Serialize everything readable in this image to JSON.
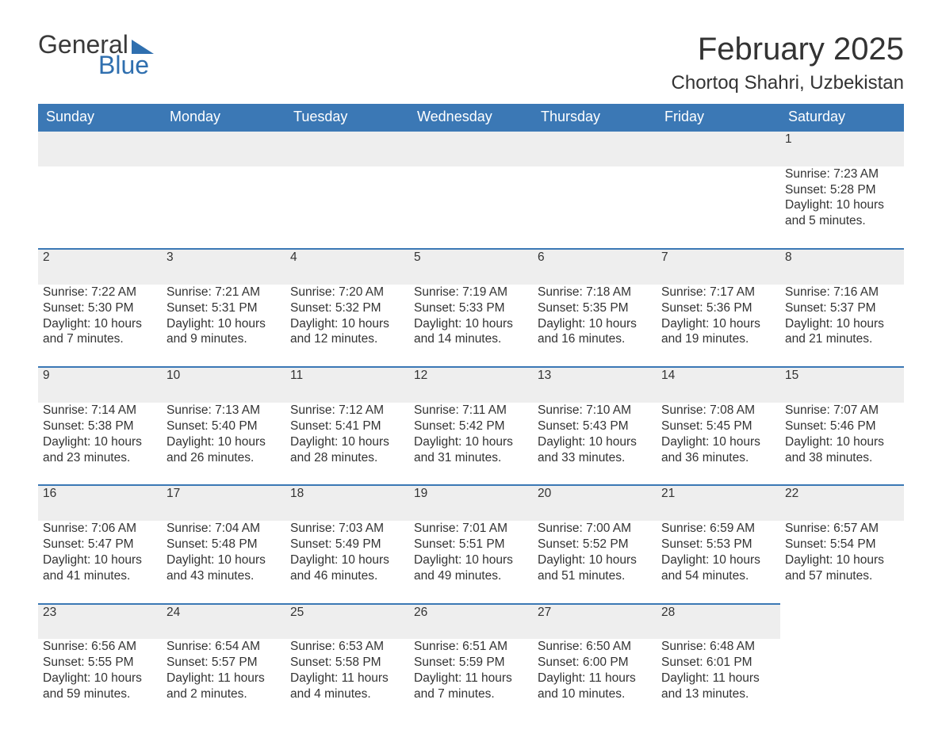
{
  "logo": {
    "word1": "General",
    "word2": "Blue"
  },
  "title": "February 2025",
  "location": "Chortoq Shahri, Uzbekistan",
  "colors": {
    "header_bg": "#3b78b5",
    "header_text": "#ffffff",
    "daynum_bg": "#eeeeee",
    "border_top": "#3b78b5",
    "body_text": "#333333",
    "logo_blue": "#2f6faf",
    "background": "#ffffff"
  },
  "typography": {
    "title_fontsize": 40,
    "location_fontsize": 24,
    "dayhead_fontsize": 18,
    "cell_fontsize": 15.5,
    "daynum_fontsize": 18,
    "font_family": "Arial"
  },
  "layout": {
    "columns": 7,
    "weeks": 5
  },
  "day_headers": [
    "Sunday",
    "Monday",
    "Tuesday",
    "Wednesday",
    "Thursday",
    "Friday",
    "Saturday"
  ],
  "weeks": [
    [
      null,
      null,
      null,
      null,
      null,
      null,
      {
        "n": "1",
        "sunrise": "Sunrise: 7:23 AM",
        "sunset": "Sunset: 5:28 PM",
        "daylight": "Daylight: 10 hours and 5 minutes."
      }
    ],
    [
      {
        "n": "2",
        "sunrise": "Sunrise: 7:22 AM",
        "sunset": "Sunset: 5:30 PM",
        "daylight": "Daylight: 10 hours and 7 minutes."
      },
      {
        "n": "3",
        "sunrise": "Sunrise: 7:21 AM",
        "sunset": "Sunset: 5:31 PM",
        "daylight": "Daylight: 10 hours and 9 minutes."
      },
      {
        "n": "4",
        "sunrise": "Sunrise: 7:20 AM",
        "sunset": "Sunset: 5:32 PM",
        "daylight": "Daylight: 10 hours and 12 minutes."
      },
      {
        "n": "5",
        "sunrise": "Sunrise: 7:19 AM",
        "sunset": "Sunset: 5:33 PM",
        "daylight": "Daylight: 10 hours and 14 minutes."
      },
      {
        "n": "6",
        "sunrise": "Sunrise: 7:18 AM",
        "sunset": "Sunset: 5:35 PM",
        "daylight": "Daylight: 10 hours and 16 minutes."
      },
      {
        "n": "7",
        "sunrise": "Sunrise: 7:17 AM",
        "sunset": "Sunset: 5:36 PM",
        "daylight": "Daylight: 10 hours and 19 minutes."
      },
      {
        "n": "8",
        "sunrise": "Sunrise: 7:16 AM",
        "sunset": "Sunset: 5:37 PM",
        "daylight": "Daylight: 10 hours and 21 minutes."
      }
    ],
    [
      {
        "n": "9",
        "sunrise": "Sunrise: 7:14 AM",
        "sunset": "Sunset: 5:38 PM",
        "daylight": "Daylight: 10 hours and 23 minutes."
      },
      {
        "n": "10",
        "sunrise": "Sunrise: 7:13 AM",
        "sunset": "Sunset: 5:40 PM",
        "daylight": "Daylight: 10 hours and 26 minutes."
      },
      {
        "n": "11",
        "sunrise": "Sunrise: 7:12 AM",
        "sunset": "Sunset: 5:41 PM",
        "daylight": "Daylight: 10 hours and 28 minutes."
      },
      {
        "n": "12",
        "sunrise": "Sunrise: 7:11 AM",
        "sunset": "Sunset: 5:42 PM",
        "daylight": "Daylight: 10 hours and 31 minutes."
      },
      {
        "n": "13",
        "sunrise": "Sunrise: 7:10 AM",
        "sunset": "Sunset: 5:43 PM",
        "daylight": "Daylight: 10 hours and 33 minutes."
      },
      {
        "n": "14",
        "sunrise": "Sunrise: 7:08 AM",
        "sunset": "Sunset: 5:45 PM",
        "daylight": "Daylight: 10 hours and 36 minutes."
      },
      {
        "n": "15",
        "sunrise": "Sunrise: 7:07 AM",
        "sunset": "Sunset: 5:46 PM",
        "daylight": "Daylight: 10 hours and 38 minutes."
      }
    ],
    [
      {
        "n": "16",
        "sunrise": "Sunrise: 7:06 AM",
        "sunset": "Sunset: 5:47 PM",
        "daylight": "Daylight: 10 hours and 41 minutes."
      },
      {
        "n": "17",
        "sunrise": "Sunrise: 7:04 AM",
        "sunset": "Sunset: 5:48 PM",
        "daylight": "Daylight: 10 hours and 43 minutes."
      },
      {
        "n": "18",
        "sunrise": "Sunrise: 7:03 AM",
        "sunset": "Sunset: 5:49 PM",
        "daylight": "Daylight: 10 hours and 46 minutes."
      },
      {
        "n": "19",
        "sunrise": "Sunrise: 7:01 AM",
        "sunset": "Sunset: 5:51 PM",
        "daylight": "Daylight: 10 hours and 49 minutes."
      },
      {
        "n": "20",
        "sunrise": "Sunrise: 7:00 AM",
        "sunset": "Sunset: 5:52 PM",
        "daylight": "Daylight: 10 hours and 51 minutes."
      },
      {
        "n": "21",
        "sunrise": "Sunrise: 6:59 AM",
        "sunset": "Sunset: 5:53 PM",
        "daylight": "Daylight: 10 hours and 54 minutes."
      },
      {
        "n": "22",
        "sunrise": "Sunrise: 6:57 AM",
        "sunset": "Sunset: 5:54 PM",
        "daylight": "Daylight: 10 hours and 57 minutes."
      }
    ],
    [
      {
        "n": "23",
        "sunrise": "Sunrise: 6:56 AM",
        "sunset": "Sunset: 5:55 PM",
        "daylight": "Daylight: 10 hours and 59 minutes."
      },
      {
        "n": "24",
        "sunrise": "Sunrise: 6:54 AM",
        "sunset": "Sunset: 5:57 PM",
        "daylight": "Daylight: 11 hours and 2 minutes."
      },
      {
        "n": "25",
        "sunrise": "Sunrise: 6:53 AM",
        "sunset": "Sunset: 5:58 PM",
        "daylight": "Daylight: 11 hours and 4 minutes."
      },
      {
        "n": "26",
        "sunrise": "Sunrise: 6:51 AM",
        "sunset": "Sunset: 5:59 PM",
        "daylight": "Daylight: 11 hours and 7 minutes."
      },
      {
        "n": "27",
        "sunrise": "Sunrise: 6:50 AM",
        "sunset": "Sunset: 6:00 PM",
        "daylight": "Daylight: 11 hours and 10 minutes."
      },
      {
        "n": "28",
        "sunrise": "Sunrise: 6:48 AM",
        "sunset": "Sunset: 6:01 PM",
        "daylight": "Daylight: 11 hours and 13 minutes."
      },
      null
    ]
  ]
}
